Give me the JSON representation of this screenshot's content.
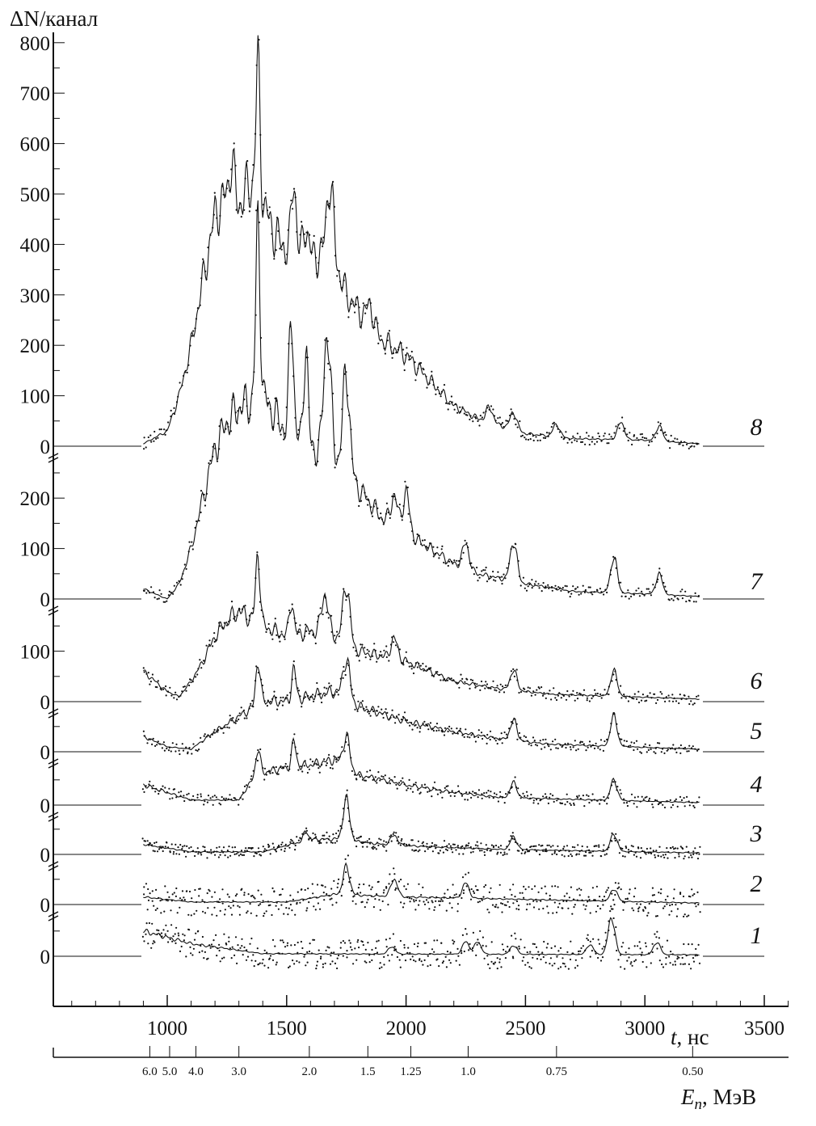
{
  "chart_data": {
    "type": "line",
    "ylabel_symbol": "ΔN",
    "ylabel_unit": "/канал",
    "xlabel_symbol": "t",
    "xlabel_unit": ", нс",
    "x2label_symbol": "E",
    "x2label_sub": "n",
    "x2label_unit": ", МэВ",
    "xlim": [
      530,
      3600
    ],
    "x_ticks": [
      "1000",
      "1500",
      "2000",
      "2500",
      "3000",
      "3500"
    ],
    "x_tick_values": [
      1000,
      1500,
      2000,
      2500,
      3000,
      3500
    ],
    "energy_ticks": [
      {
        "label": "6.0",
        "t": 927
      },
      {
        "label": "5.0",
        "t": 1010
      },
      {
        "label": "4.0",
        "t": 1120
      },
      {
        "label": "3.0",
        "t": 1300
      },
      {
        "label": "2.0",
        "t": 1595
      },
      {
        "label": "1.5",
        "t": 1840
      },
      {
        "label": "1.25",
        "t": 2020
      },
      {
        "label": "1.0",
        "t": 2260
      },
      {
        "label": "0.75",
        "t": 2630
      },
      {
        "label": "0.50",
        "t": 3200
      }
    ],
    "grid": false,
    "series": [
      {
        "name": "8",
        "offset": 0,
        "yticks": [
          "800",
          "700",
          "600",
          "500",
          "400",
          "300",
          "200",
          "100",
          "0"
        ],
        "ytick_values": [
          800,
          700,
          600,
          500,
          400,
          300,
          200,
          100,
          0
        ],
        "background": [
          [
            900,
            5
          ],
          [
            1000,
            30
          ],
          [
            1050,
            100
          ],
          [
            1100,
            200
          ],
          [
            1150,
            330
          ],
          [
            1200,
            460
          ],
          [
            1250,
            500
          ],
          [
            1300,
            480
          ],
          [
            1350,
            520
          ],
          [
            1400,
            480
          ],
          [
            1450,
            420
          ],
          [
            1500,
            390
          ],
          [
            1600,
            380
          ],
          [
            1700,
            370
          ],
          [
            1750,
            300
          ],
          [
            1800,
            270
          ],
          [
            1900,
            210
          ],
          [
            2000,
            180
          ],
          [
            2100,
            130
          ],
          [
            2200,
            80
          ],
          [
            2300,
            55
          ],
          [
            2400,
            40
          ],
          [
            2500,
            25
          ],
          [
            2700,
            15
          ],
          [
            3000,
            12
          ],
          [
            3230,
            5
          ]
        ],
        "peaks": [
          [
            1270,
            80
          ],
          [
            1380,
            250
          ],
          [
            1530,
            150
          ],
          [
            1580,
            60
          ],
          [
            1680,
            150
          ],
          [
            1850,
            40
          ],
          [
            2350,
            30
          ],
          [
            2450,
            35
          ],
          [
            2630,
            25
          ],
          [
            2900,
            35
          ],
          [
            3060,
            30
          ]
        ]
      },
      {
        "name": "7",
        "offset": 0,
        "yticks": [
          "200",
          "100",
          "0"
        ],
        "ytick_values": [
          200,
          100,
          0
        ],
        "background": [
          [
            900,
            20
          ],
          [
            1000,
            0
          ],
          [
            1050,
            30
          ],
          [
            1100,
            100
          ],
          [
            1150,
            200
          ],
          [
            1200,
            300
          ],
          [
            1250,
            350
          ],
          [
            1300,
            380
          ],
          [
            1400,
            400
          ],
          [
            1500,
            330
          ],
          [
            1600,
            300
          ],
          [
            1700,
            280
          ],
          [
            1800,
            220
          ],
          [
            1900,
            160
          ],
          [
            2000,
            130
          ],
          [
            2100,
            100
          ],
          [
            2200,
            70
          ],
          [
            2300,
            50
          ],
          [
            2500,
            30
          ],
          [
            2700,
            15
          ],
          [
            3000,
            10
          ],
          [
            3230,
            5
          ]
        ],
        "peaks": [
          [
            1380,
            350
          ],
          [
            1520,
            250
          ],
          [
            1580,
            200
          ],
          [
            1670,
            250
          ],
          [
            1750,
            200
          ],
          [
            1950,
            60
          ],
          [
            2000,
            80
          ],
          [
            2250,
            50
          ],
          [
            2450,
            80
          ],
          [
            2870,
            70
          ],
          [
            3060,
            40
          ]
        ]
      },
      {
        "name": "6",
        "offset": 0,
        "yticks": [
          "100",
          "0"
        ],
        "ytick_values": [
          100,
          0
        ],
        "background": [
          [
            900,
            60
          ],
          [
            1000,
            20
          ],
          [
            1050,
            10
          ],
          [
            1100,
            40
          ],
          [
            1150,
            80
          ],
          [
            1200,
            130
          ],
          [
            1250,
            160
          ],
          [
            1300,
            180
          ],
          [
            1400,
            150
          ],
          [
            1500,
            130
          ],
          [
            1600,
            140
          ],
          [
            1700,
            130
          ],
          [
            1800,
            100
          ],
          [
            2000,
            80
          ],
          [
            2200,
            40
          ],
          [
            2400,
            25
          ],
          [
            2600,
            15
          ],
          [
            3230,
            5
          ]
        ],
        "peaks": [
          [
            1380,
            140
          ],
          [
            1520,
            70
          ],
          [
            1660,
            80
          ],
          [
            1750,
            120
          ],
          [
            1950,
            40
          ],
          [
            2450,
            40
          ],
          [
            2870,
            50
          ]
        ]
      },
      {
        "name": "5",
        "offset": 0,
        "yticks": [
          "0"
        ],
        "ytick_values": [
          0
        ],
        "background": [
          [
            900,
            30
          ],
          [
            1000,
            10
          ],
          [
            1100,
            5
          ],
          [
            1200,
            40
          ],
          [
            1300,
            70
          ],
          [
            1400,
            100
          ],
          [
            1500,
            100
          ],
          [
            1600,
            110
          ],
          [
            1700,
            120
          ],
          [
            1800,
            90
          ],
          [
            2000,
            60
          ],
          [
            2200,
            40
          ],
          [
            2400,
            25
          ],
          [
            2600,
            15
          ],
          [
            3230,
            5
          ]
        ],
        "peaks": [
          [
            1380,
            90
          ],
          [
            1530,
            60
          ],
          [
            1750,
            80
          ],
          [
            2450,
            40
          ],
          [
            2870,
            60
          ]
        ]
      },
      {
        "name": "4",
        "offset": 0,
        "yticks": [
          "0"
        ],
        "ytick_values": [
          0
        ],
        "background": [
          [
            900,
            40
          ],
          [
            1100,
            10
          ],
          [
            1300,
            10
          ],
          [
            1370,
            60
          ],
          [
            1450,
            70
          ],
          [
            1600,
            80
          ],
          [
            1700,
            90
          ],
          [
            1800,
            60
          ],
          [
            2000,
            40
          ],
          [
            2200,
            25
          ],
          [
            2400,
            15
          ],
          [
            3230,
            5
          ]
        ],
        "peaks": [
          [
            1380,
            50
          ],
          [
            1530,
            50
          ],
          [
            1750,
            60
          ],
          [
            2450,
            30
          ],
          [
            2870,
            40
          ]
        ]
      },
      {
        "name": "3",
        "offset": 0,
        "yticks": [
          "0"
        ],
        "ytick_values": [
          0
        ],
        "background": [
          [
            900,
            20
          ],
          [
            1100,
            5
          ],
          [
            1400,
            5
          ],
          [
            1600,
            30
          ],
          [
            1700,
            30
          ],
          [
            1900,
            20
          ],
          [
            2100,
            15
          ],
          [
            2400,
            10
          ],
          [
            3230,
            3
          ]
        ],
        "peaks": [
          [
            1580,
            20
          ],
          [
            1750,
            80
          ],
          [
            1950,
            20
          ],
          [
            2450,
            25
          ],
          [
            2870,
            35
          ]
        ]
      },
      {
        "name": "2",
        "offset": 0,
        "yticks": [
          "0"
        ],
        "ytick_values": [
          0
        ],
        "background": [
          [
            900,
            15
          ],
          [
            1100,
            5
          ],
          [
            1500,
            5
          ],
          [
            1700,
            20
          ],
          [
            2000,
            15
          ],
          [
            2500,
            10
          ],
          [
            3230,
            3
          ]
        ],
        "peaks": [
          [
            1750,
            55
          ],
          [
            1950,
            35
          ],
          [
            2250,
            30
          ],
          [
            2870,
            25
          ]
        ]
      },
      {
        "name": "1",
        "offset": 0,
        "yticks": [
          "0"
        ],
        "ytick_values": [
          0
        ],
        "background": [
          [
            900,
            50
          ],
          [
            1100,
            25
          ],
          [
            1400,
            5
          ],
          [
            3230,
            3
          ]
        ],
        "peaks": [
          [
            1940,
            15
          ],
          [
            2250,
            25
          ],
          [
            2300,
            25
          ],
          [
            2450,
            18
          ],
          [
            2770,
            20
          ],
          [
            2860,
            75
          ],
          [
            3050,
            25
          ]
        ]
      }
    ]
  }
}
